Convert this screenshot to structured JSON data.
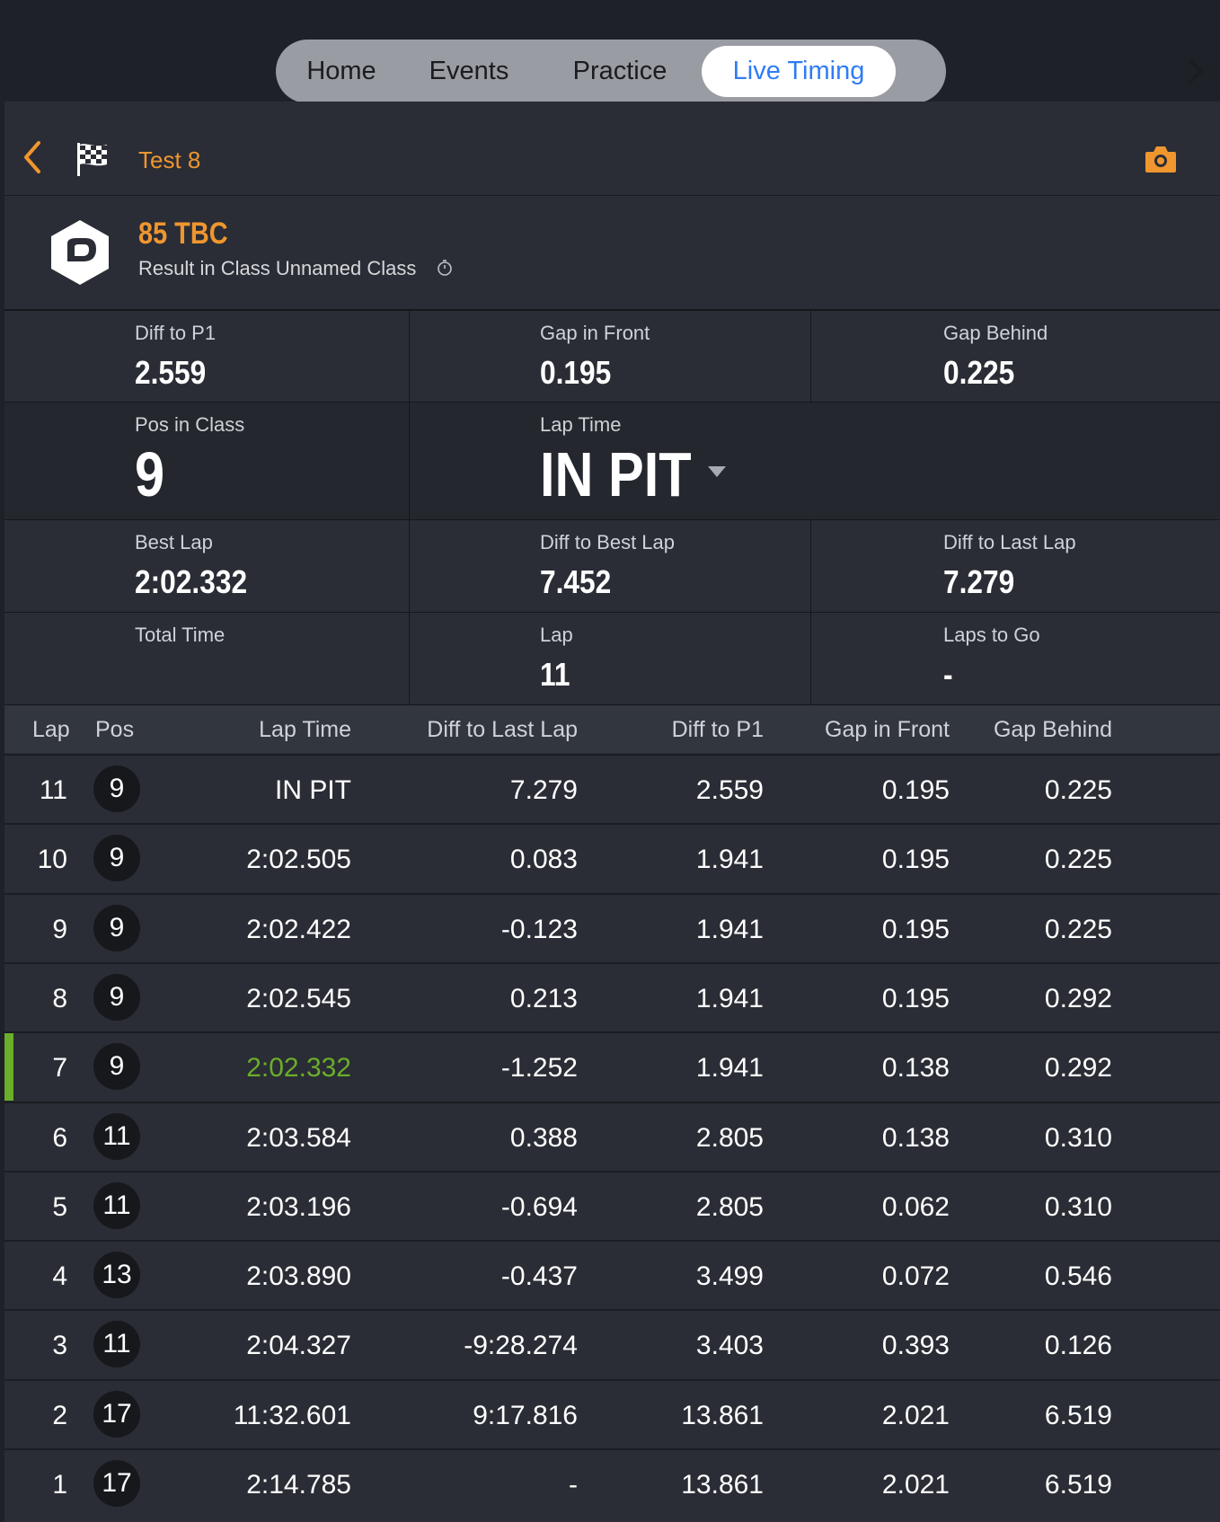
{
  "nav": {
    "tabs": [
      {
        "label": "Home"
      },
      {
        "label": "Events"
      },
      {
        "label": "Practice"
      },
      {
        "label": "Live Timing"
      }
    ],
    "active_tab": "Live Timing"
  },
  "header": {
    "event_title": "Test 8"
  },
  "driver": {
    "name": "85 TBC",
    "class_line": "Result in Class Unnamed Class"
  },
  "stats": {
    "diff_to_p1": {
      "label": "Diff to P1",
      "value": "2.559"
    },
    "gap_in_front": {
      "label": "Gap in Front",
      "value": "0.195"
    },
    "gap_behind": {
      "label": "Gap Behind",
      "value": "0.225"
    },
    "pos_in_class": {
      "label": "Pos in Class",
      "value": "9"
    },
    "lap_time": {
      "label": "Lap Time",
      "value": "IN PIT"
    },
    "best_lap": {
      "label": "Best Lap",
      "value": "2:02.332"
    },
    "diff_to_best_lap": {
      "label": "Diff to Best Lap",
      "value": "7.452"
    },
    "diff_to_last_lap": {
      "label": "Diff to Last Lap",
      "value": "7.279"
    },
    "total_time": {
      "label": "Total Time",
      "value": ""
    },
    "lap": {
      "label": "Lap",
      "value": "11"
    },
    "laps_to_go": {
      "label": "Laps to Go",
      "value": "-"
    }
  },
  "table": {
    "headers": [
      "Lap",
      "Pos",
      "Lap Time",
      "Diff to Last Lap",
      "Diff to P1",
      "Gap in Front",
      "Gap Behind"
    ],
    "rows": [
      {
        "lap": "11",
        "pos": "9",
        "lap_time": "IN PIT",
        "diff_last": "7.279",
        "diff_p1": "2.559",
        "gap_front": "0.195",
        "gap_behind": "0.225",
        "best": false
      },
      {
        "lap": "10",
        "pos": "9",
        "lap_time": "2:02.505",
        "diff_last": "0.083",
        "diff_p1": "1.941",
        "gap_front": "0.195",
        "gap_behind": "0.225",
        "best": false
      },
      {
        "lap": "9",
        "pos": "9",
        "lap_time": "2:02.422",
        "diff_last": "-0.123",
        "diff_p1": "1.941",
        "gap_front": "0.195",
        "gap_behind": "0.225",
        "best": false
      },
      {
        "lap": "8",
        "pos": "9",
        "lap_time": "2:02.545",
        "diff_last": "0.213",
        "diff_p1": "1.941",
        "gap_front": "0.195",
        "gap_behind": "0.292",
        "best": false
      },
      {
        "lap": "7",
        "pos": "9",
        "lap_time": "2:02.332",
        "diff_last": "-1.252",
        "diff_p1": "1.941",
        "gap_front": "0.138",
        "gap_behind": "0.292",
        "best": true
      },
      {
        "lap": "6",
        "pos": "11",
        "lap_time": "2:03.584",
        "diff_last": "0.388",
        "diff_p1": "2.805",
        "gap_front": "0.138",
        "gap_behind": "0.310",
        "best": false
      },
      {
        "lap": "5",
        "pos": "11",
        "lap_time": "2:03.196",
        "diff_last": "-0.694",
        "diff_p1": "2.805",
        "gap_front": "0.062",
        "gap_behind": "0.310",
        "best": false
      },
      {
        "lap": "4",
        "pos": "13",
        "lap_time": "2:03.890",
        "diff_last": "-0.437",
        "diff_p1": "3.499",
        "gap_front": "0.072",
        "gap_behind": "0.546",
        "best": false
      },
      {
        "lap": "3",
        "pos": "11",
        "lap_time": "2:04.327",
        "diff_last": "-9:28.274",
        "diff_p1": "3.403",
        "gap_front": "0.393",
        "gap_behind": "0.126",
        "best": false
      },
      {
        "lap": "2",
        "pos": "17",
        "lap_time": "11:32.601",
        "diff_last": "9:17.816",
        "diff_p1": "13.861",
        "gap_front": "2.021",
        "gap_behind": "6.519",
        "best": false
      },
      {
        "lap": "1",
        "pos": "17",
        "lap_time": "2:14.785",
        "diff_last": "-",
        "diff_p1": "13.861",
        "gap_front": "2.021",
        "gap_behind": "6.519",
        "best": false
      }
    ]
  },
  "colors": {
    "accent_orange": "#f0962f",
    "active_tab_blue": "#2f7cf6",
    "best_lap_green": "#6aae2a",
    "panel_bg": "#2a2d35"
  },
  "icons": {
    "back": "chevron-left-icon",
    "flag": "checkered-flag-icon",
    "camera": "camera-icon",
    "team_logo": "team-logo",
    "stopwatch": "stopwatch-icon",
    "dropdown": "triangle-down-icon",
    "next": "chevron-right-icon"
  }
}
